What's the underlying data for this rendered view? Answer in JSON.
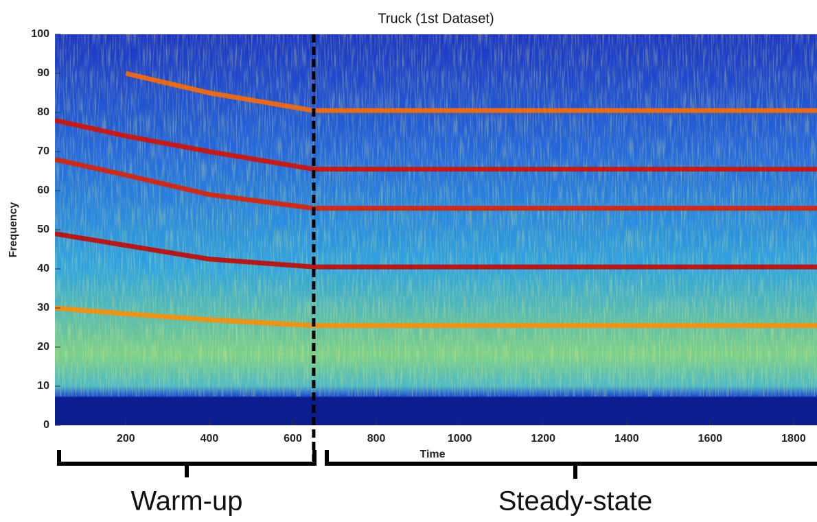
{
  "chart_data": {
    "type": "spectrogram",
    "title": "Truck (1st Dataset)",
    "xlabel": "Time",
    "ylabel": "Frequency",
    "xlim": [
      30,
      1856
    ],
    "ylim": [
      0,
      100
    ],
    "xticks": [
      200,
      400,
      600,
      800,
      1000,
      1200,
      1400,
      1600,
      1800
    ],
    "yticks": [
      0,
      10,
      20,
      30,
      40,
      50,
      60,
      70,
      80,
      90,
      100
    ],
    "x": [
      30,
      200,
      400,
      650,
      1856
    ],
    "series": [
      {
        "color": "#ff6a00",
        "values": [
          null,
          90,
          85,
          80.5,
          80.5
        ]
      },
      {
        "color": "#d81000",
        "values": [
          78,
          74,
          70,
          65.5,
          65.5
        ]
      },
      {
        "color": "#e02000",
        "values": [
          68,
          64,
          59,
          55.5,
          55.5
        ]
      },
      {
        "color": "#c80800",
        "values": [
          49,
          46,
          42.5,
          40.5,
          40.5
        ]
      },
      {
        "color": "#ff8c00",
        "values": [
          30,
          28.5,
          27,
          25.5,
          25.5
        ]
      }
    ],
    "divider_x": 650,
    "annotations": [
      "Warm-up",
      "Steady-state"
    ]
  }
}
